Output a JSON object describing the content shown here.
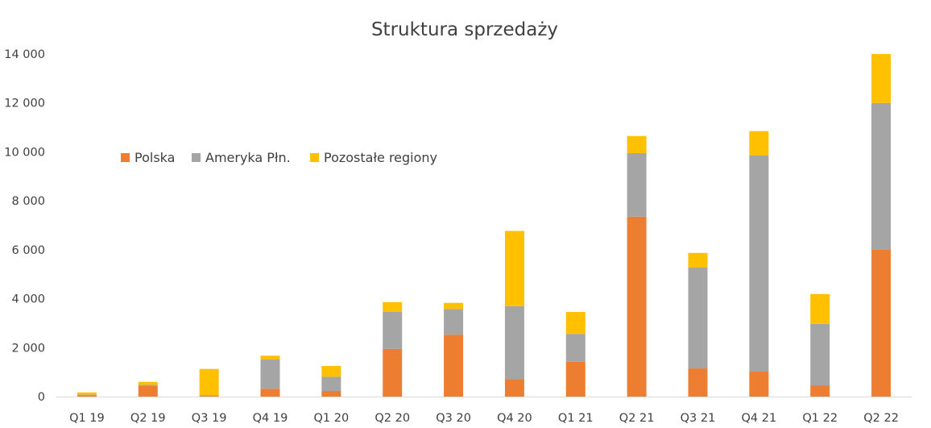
{
  "chart_data": {
    "type": "bar",
    "stacked": true,
    "title": "Struktura sprzedaży",
    "xlabel": "",
    "ylabel": "",
    "ylim": [
      0,
      14000
    ],
    "yticks": [
      0,
      2000,
      4000,
      6000,
      8000,
      10000,
      12000,
      14000
    ],
    "ytick_labels": [
      "0",
      "2 000",
      "4 000",
      "6 000",
      "8 000",
      "10 000",
      "12 000",
      "14 000"
    ],
    "grid": false,
    "legend_position": "upper-left",
    "categories": [
      "Q1 19",
      "Q2 19",
      "Q3 19",
      "Q4 19",
      "Q1 20",
      "Q2 20",
      "Q3 20",
      "Q4 20",
      "Q1 21",
      "Q2 21",
      "Q3 21",
      "Q4 21",
      "Q1 22",
      "Q2 22"
    ],
    "series": [
      {
        "name": "Polska",
        "color": "#ED7D31",
        "values": [
          60,
          450,
          30,
          320,
          230,
          1950,
          2530,
          720,
          1420,
          7350,
          1150,
          1020,
          460,
          6020
        ]
      },
      {
        "name": "Ameryka Płn.",
        "color": "#A5A5A5",
        "values": [
          20,
          30,
          20,
          1200,
          580,
          1510,
          1050,
          2980,
          1140,
          2600,
          4120,
          8830,
          2510,
          5980
        ]
      },
      {
        "name": "Pozostałe regiony",
        "color": "#FFC000",
        "values": [
          90,
          120,
          1080,
          150,
          440,
          400,
          250,
          3070,
          900,
          700,
          600,
          1000,
          1220,
          2000
        ]
      }
    ]
  }
}
